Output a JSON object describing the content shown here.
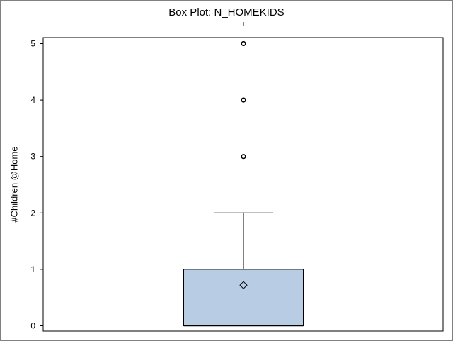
{
  "chart_data": {
    "type": "box",
    "title": "Box Plot: N_HOMEKIDS",
    "ylabel": "#Children @Home",
    "xlabel": "",
    "ylim": [
      0,
      5
    ],
    "yticks": [
      0,
      1,
      2,
      3,
      4,
      5
    ],
    "grid": false,
    "box": {
      "min": 0,
      "q1": 0,
      "median": 0,
      "q3": 1,
      "whisker_low": 0,
      "whisker_high": 2,
      "mean": 0.72,
      "outliers": [
        3,
        4,
        5
      ],
      "fill": "#b8cde4"
    }
  }
}
